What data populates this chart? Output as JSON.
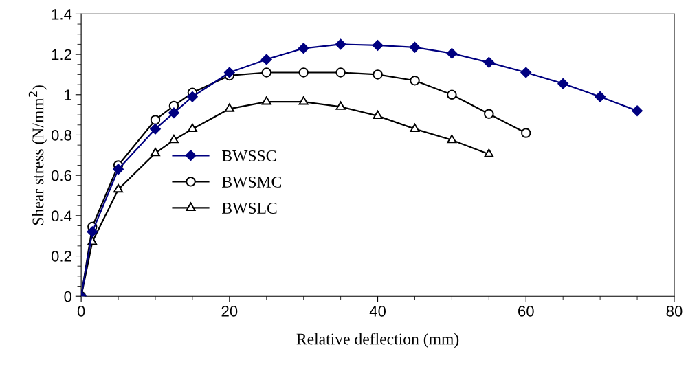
{
  "chart_data": {
    "type": "line",
    "xlabel": "Relative deflection (mm)",
    "ylabel": "Shear stress (N/mm$^{2}$)",
    "xlim": [
      0,
      80
    ],
    "xticks": [
      0,
      20,
      40,
      60,
      80
    ],
    "ylim": [
      0,
      1.4
    ],
    "yticks": [
      0,
      0.2,
      0.4,
      0.6,
      0.8,
      1,
      1.2,
      1.4
    ],
    "grid": false,
    "legend": "left",
    "line_style": "solid",
    "series": [
      {
        "name": "BWSSC",
        "color": "#000080",
        "marker": "diamond",
        "x": [
          0,
          1.5,
          5,
          10,
          12.5,
          15,
          20,
          25,
          30,
          35,
          40,
          45,
          50,
          55,
          60,
          65,
          70,
          75
        ],
        "values": [
          0,
          0.32,
          0.63,
          0.83,
          0.91,
          0.99,
          1.11,
          1.175,
          1.23,
          1.25,
          1.245,
          1.235,
          1.205,
          1.16,
          1.11,
          1.055,
          0.99,
          0.92
        ]
      },
      {
        "name": "BWSMC",
        "color": "#000000",
        "marker": "circle",
        "x": [
          0,
          1.5,
          5,
          10,
          12.5,
          15,
          20,
          25,
          30,
          35,
          40,
          45,
          50,
          55,
          60
        ],
        "values": [
          0,
          0.345,
          0.65,
          0.875,
          0.945,
          1.01,
          1.095,
          1.11,
          1.11,
          1.11,
          1.1,
          1.07,
          1.0,
          0.905,
          0.81
        ]
      },
      {
        "name": "BWSLC",
        "color": "#000000",
        "marker": "triangle",
        "x": [
          0,
          1.5,
          5,
          10,
          12.5,
          15,
          20,
          25,
          30,
          35,
          40,
          45,
          50,
          55
        ],
        "values": [
          0,
          0.27,
          0.53,
          0.71,
          0.775,
          0.83,
          0.93,
          0.965,
          0.965,
          0.94,
          0.895,
          0.83,
          0.775,
          0.705
        ]
      }
    ]
  }
}
